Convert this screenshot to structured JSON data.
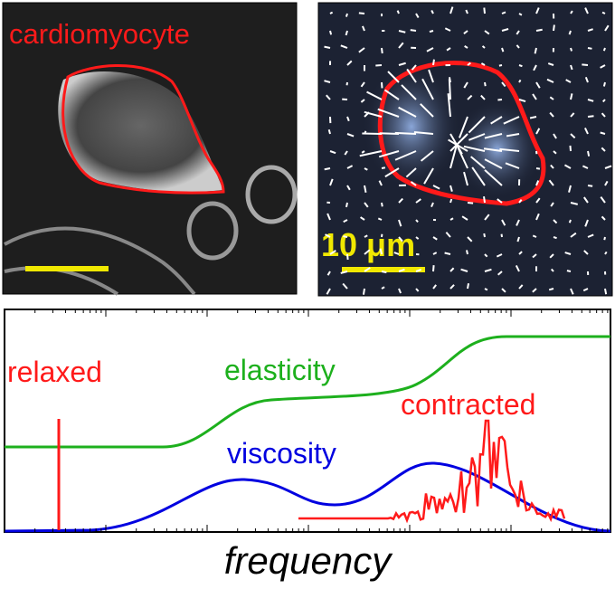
{
  "panels": {
    "cell_image": {
      "label": "cardiomyocyte"
    },
    "traction_map": {
      "scale_label": "10 μm"
    }
  },
  "spectrum": {
    "relaxed_label": "relaxed",
    "elasticity_label": "elasticity",
    "contracted_label": "contracted",
    "viscosity_label": "viscosity",
    "x_axis_label": "frequency"
  }
}
